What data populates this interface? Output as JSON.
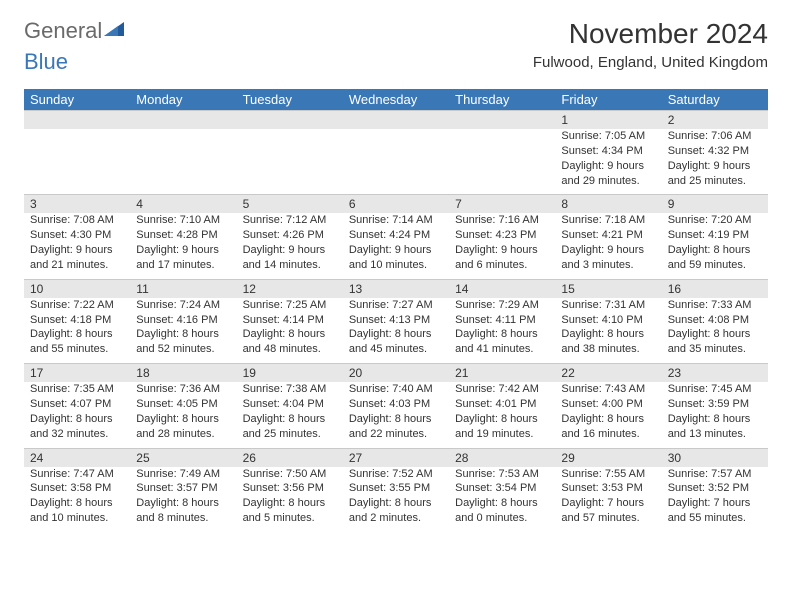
{
  "brand": {
    "word1": "General",
    "word2": "Blue"
  },
  "header": {
    "month_title": "November 2024",
    "location": "Fulwood, England, United Kingdom"
  },
  "colors": {
    "header_bg": "#3a77b7",
    "header_text": "#ffffff",
    "band_bg": "#e7e7e7",
    "text": "#333333",
    "logo_gray": "#6a6a6a",
    "logo_blue": "#3a77b7"
  },
  "typography": {
    "title_fontsize": 28,
    "location_fontsize": 15,
    "dow_fontsize": 13,
    "daynum_fontsize": 12,
    "body_fontsize": 11
  },
  "calendar": {
    "days_of_week": [
      "Sunday",
      "Monday",
      "Tuesday",
      "Wednesday",
      "Thursday",
      "Friday",
      "Saturday"
    ],
    "first_weekday_index": 5,
    "num_days": 30,
    "days": {
      "1": {
        "sunrise": "7:05 AM",
        "sunset": "4:34 PM",
        "daylight": "9 hours and 29 minutes."
      },
      "2": {
        "sunrise": "7:06 AM",
        "sunset": "4:32 PM",
        "daylight": "9 hours and 25 minutes."
      },
      "3": {
        "sunrise": "7:08 AM",
        "sunset": "4:30 PM",
        "daylight": "9 hours and 21 minutes."
      },
      "4": {
        "sunrise": "7:10 AM",
        "sunset": "4:28 PM",
        "daylight": "9 hours and 17 minutes."
      },
      "5": {
        "sunrise": "7:12 AM",
        "sunset": "4:26 PM",
        "daylight": "9 hours and 14 minutes."
      },
      "6": {
        "sunrise": "7:14 AM",
        "sunset": "4:24 PM",
        "daylight": "9 hours and 10 minutes."
      },
      "7": {
        "sunrise": "7:16 AM",
        "sunset": "4:23 PM",
        "daylight": "9 hours and 6 minutes."
      },
      "8": {
        "sunrise": "7:18 AM",
        "sunset": "4:21 PM",
        "daylight": "9 hours and 3 minutes."
      },
      "9": {
        "sunrise": "7:20 AM",
        "sunset": "4:19 PM",
        "daylight": "8 hours and 59 minutes."
      },
      "10": {
        "sunrise": "7:22 AM",
        "sunset": "4:18 PM",
        "daylight": "8 hours and 55 minutes."
      },
      "11": {
        "sunrise": "7:24 AM",
        "sunset": "4:16 PM",
        "daylight": "8 hours and 52 minutes."
      },
      "12": {
        "sunrise": "7:25 AM",
        "sunset": "4:14 PM",
        "daylight": "8 hours and 48 minutes."
      },
      "13": {
        "sunrise": "7:27 AM",
        "sunset": "4:13 PM",
        "daylight": "8 hours and 45 minutes."
      },
      "14": {
        "sunrise": "7:29 AM",
        "sunset": "4:11 PM",
        "daylight": "8 hours and 41 minutes."
      },
      "15": {
        "sunrise": "7:31 AM",
        "sunset": "4:10 PM",
        "daylight": "8 hours and 38 minutes."
      },
      "16": {
        "sunrise": "7:33 AM",
        "sunset": "4:08 PM",
        "daylight": "8 hours and 35 minutes."
      },
      "17": {
        "sunrise": "7:35 AM",
        "sunset": "4:07 PM",
        "daylight": "8 hours and 32 minutes."
      },
      "18": {
        "sunrise": "7:36 AM",
        "sunset": "4:05 PM",
        "daylight": "8 hours and 28 minutes."
      },
      "19": {
        "sunrise": "7:38 AM",
        "sunset": "4:04 PM",
        "daylight": "8 hours and 25 minutes."
      },
      "20": {
        "sunrise": "7:40 AM",
        "sunset": "4:03 PM",
        "daylight": "8 hours and 22 minutes."
      },
      "21": {
        "sunrise": "7:42 AM",
        "sunset": "4:01 PM",
        "daylight": "8 hours and 19 minutes."
      },
      "22": {
        "sunrise": "7:43 AM",
        "sunset": "4:00 PM",
        "daylight": "8 hours and 16 minutes."
      },
      "23": {
        "sunrise": "7:45 AM",
        "sunset": "3:59 PM",
        "daylight": "8 hours and 13 minutes."
      },
      "24": {
        "sunrise": "7:47 AM",
        "sunset": "3:58 PM",
        "daylight": "8 hours and 10 minutes."
      },
      "25": {
        "sunrise": "7:49 AM",
        "sunset": "3:57 PM",
        "daylight": "8 hours and 8 minutes."
      },
      "26": {
        "sunrise": "7:50 AM",
        "sunset": "3:56 PM",
        "daylight": "8 hours and 5 minutes."
      },
      "27": {
        "sunrise": "7:52 AM",
        "sunset": "3:55 PM",
        "daylight": "8 hours and 2 minutes."
      },
      "28": {
        "sunrise": "7:53 AM",
        "sunset": "3:54 PM",
        "daylight": "8 hours and 0 minutes."
      },
      "29": {
        "sunrise": "7:55 AM",
        "sunset": "3:53 PM",
        "daylight": "7 hours and 57 minutes."
      },
      "30": {
        "sunrise": "7:57 AM",
        "sunset": "3:52 PM",
        "daylight": "7 hours and 55 minutes."
      }
    },
    "labels": {
      "sunrise": "Sunrise:",
      "sunset": "Sunset:",
      "daylight": "Daylight:"
    }
  }
}
